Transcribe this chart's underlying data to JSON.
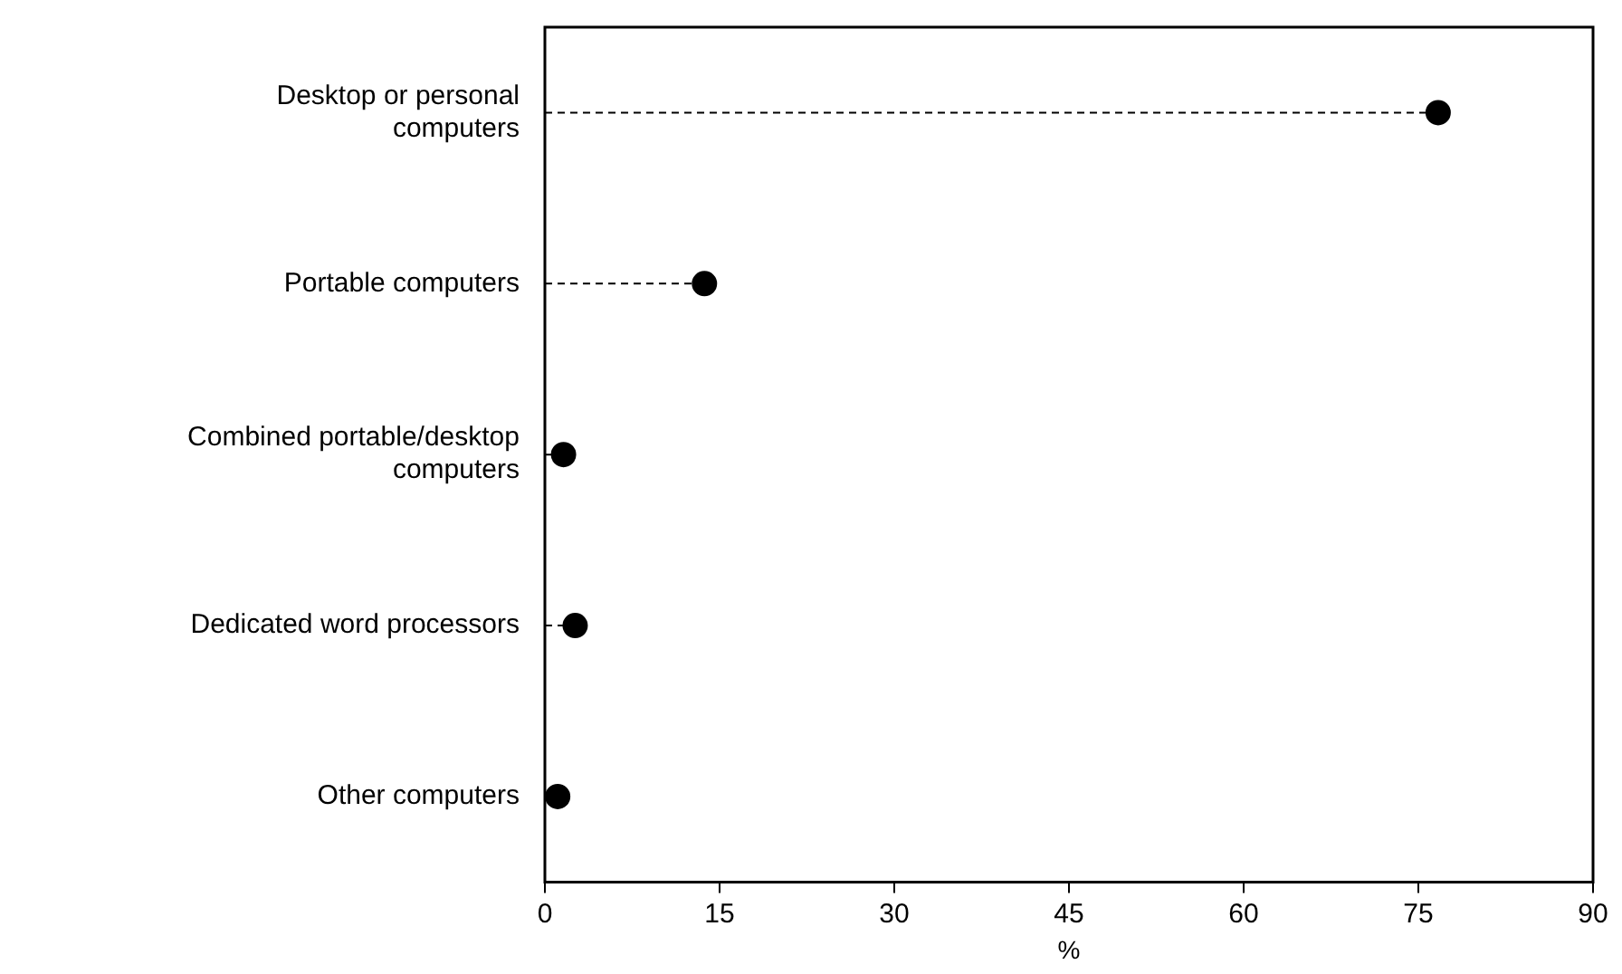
{
  "chart_data": {
    "type": "lollipop",
    "orientation": "horizontal",
    "xlabel": "%",
    "categories": [
      "Desktop or personal computers",
      "Portable computers",
      "Combined portable/desktop computers",
      "Dedicated word processors",
      "Other computers"
    ],
    "values": [
      76.7,
      13.7,
      1.6,
      2.6,
      1.1
    ],
    "color": "#000000",
    "marker": "circle",
    "line_style": "dashed",
    "grid": false,
    "legend": false,
    "xlim": [
      0,
      90
    ],
    "xticks": [
      0,
      15,
      30,
      45,
      60,
      75,
      90
    ]
  }
}
